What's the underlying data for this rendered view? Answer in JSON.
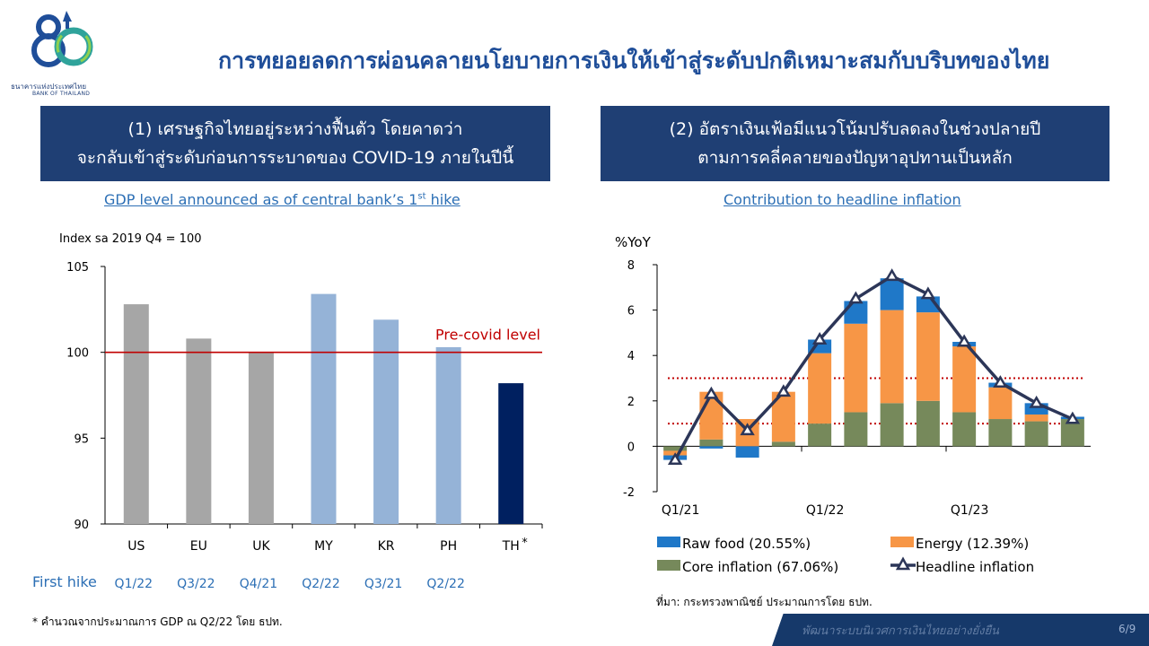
{
  "logo": {
    "numeral": "80",
    "org_name": "ธนาคารแห่งประเทศไทย",
    "org_name_en": "BANK OF THAILAND"
  },
  "title": "การทยอยลดการผ่อนคลายนโยบายการเงินให้เข้าสู่ระดับปกติเหมาะสมกับบริบทของไทย",
  "left_panel": {
    "header_line1": "(1) เศรษฐกิจไทยอยู่ระหว่างฟื้นตัว โดยคาดว่า",
    "header_line2": "จะกลับเข้าสู่ระดับก่อนการระบาดของ COVID-19 ภายในปีนี้",
    "subtitle": "GDP level announced as of central bank’s 1",
    "subtitle_sup": "st",
    "subtitle_end": " hike",
    "first_hike_label": "First hike",
    "asterisk": "*",
    "footnote": "* คำนวณจากประมาณการ GDP ณ Q2/22 โดย ธปท."
  },
  "right_panel": {
    "header_line1": "(2) อัตราเงินเฟ้อมีแนวโน้มปรับลดลงในช่วงปลายปี",
    "header_line2": "ตามการคลี่คลายของปัญหาอุปทานเป็นหลัก",
    "subtitle": "Contribution to headline inflation",
    "source": "ที่มา: กระทรวงพาณิชย์ ประมาณการโดย ธปท."
  },
  "footer": {
    "text": "พัฒนาระบบนิเวศการเงินไทยอย่างยั่งยืน",
    "page": "6/9"
  },
  "colors": {
    "navy": "#1f3f74",
    "gray_bar": "#a6a6a6",
    "light_blue_bar": "#95b3d7",
    "th_bar": "#002060",
    "precovid_line": "#c00000",
    "raw_food": "#1f78c8",
    "energy": "#f79646",
    "core": "#76895b",
    "headline": "#2c3658"
  },
  "chart_data": [
    {
      "type": "bar",
      "ylabel": "Index sa 2019 Q4 = 100",
      "ylim": [
        90,
        105
      ],
      "yticks": [
        "90",
        "95",
        "100",
        "105"
      ],
      "categories": [
        "US",
        "EU",
        "UK",
        "MY",
        "KR",
        "PH",
        "TH"
      ],
      "values": [
        102.8,
        100.8,
        100.0,
        103.4,
        101.9,
        100.3,
        98.2
      ],
      "first_hike": [
        "Q1/22",
        "Q3/22",
        "Q4/21",
        "Q2/22",
        "Q3/21",
        "Q2/22",
        ""
      ],
      "bar_color_groups": [
        "gray",
        "gray",
        "gray",
        "light_blue",
        "light_blue",
        "light_blue",
        "navy"
      ],
      "reference_line": {
        "value": 100,
        "label": "Pre-covid level"
      },
      "grid": false
    },
    {
      "type": "bar",
      "stacked": true,
      "ylabel": "%YoY",
      "ylim": [
        -2,
        8
      ],
      "yticks": [
        "-2",
        "0",
        "2",
        "4",
        "6",
        "8"
      ],
      "x": [
        "Q1/21",
        "Q2/21",
        "Q3/21",
        "Q4/21",
        "Q1/22",
        "Q2/22",
        "Q3/22",
        "Q4/22",
        "Q1/23",
        "Q2/23",
        "Q3/23",
        "Q4/23"
      ],
      "x_tick_labels": [
        "Q1/21",
        "Q1/22",
        "Q1/23"
      ],
      "series": [
        {
          "name": "Core inflation (67.06%)",
          "kind": "bar",
          "values": [
            -0.2,
            0.3,
            0.0,
            0.2,
            1.0,
            1.5,
            1.9,
            2.0,
            1.5,
            1.2,
            1.1,
            1.2
          ]
        },
        {
          "name": "Energy (12.39%)",
          "kind": "bar",
          "values": [
            -0.2,
            2.1,
            1.2,
            2.2,
            3.1,
            3.9,
            4.1,
            3.9,
            2.9,
            1.4,
            0.3,
            0.0
          ]
        },
        {
          "name": "Raw food (20.55%)",
          "kind": "bar",
          "values": [
            -0.2,
            -0.1,
            -0.5,
            0.0,
            0.6,
            1.0,
            1.4,
            0.7,
            0.2,
            0.2,
            0.5,
            0.1
          ]
        },
        {
          "name": "Headline inflation",
          "kind": "line",
          "values": [
            -0.6,
            2.3,
            0.7,
            2.4,
            4.7,
            6.5,
            7.5,
            6.7,
            4.6,
            2.8,
            1.9,
            1.2
          ]
        }
      ],
      "reference_lines": [
        3,
        1
      ],
      "legend_position": "bottom",
      "grid": false
    }
  ]
}
